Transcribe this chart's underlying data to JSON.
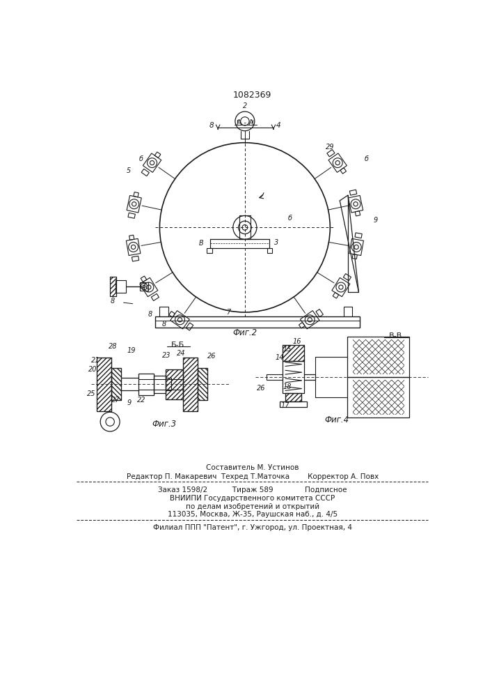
{
  "patent_number": "1082369",
  "fig2_label": "Фиг.2",
  "fig3_label": "Фиг.3",
  "fig4_label": "Фиг.4",
  "footer_line1": "Составитель М. Устинов",
  "footer_line2": "Редактор П. Макаревич  Техред Т.Маточка        Корректор А. Повх",
  "footer_line3": "Заказ 1598/2           Тираж 589              Подписное",
  "footer_line4": "ВНИИПИ Государственного комитета СССР",
  "footer_line5": "по делам изобретений и открытий",
  "footer_line6": "113035, Москва, Ж-35, Раушская наб., д. 4/5",
  "footer_line7": "Филиал ППП \"Патент\", г. Ужгород, ул. Проектная, 4",
  "bg_color": "#ffffff",
  "line_color": "#1a1a1a"
}
